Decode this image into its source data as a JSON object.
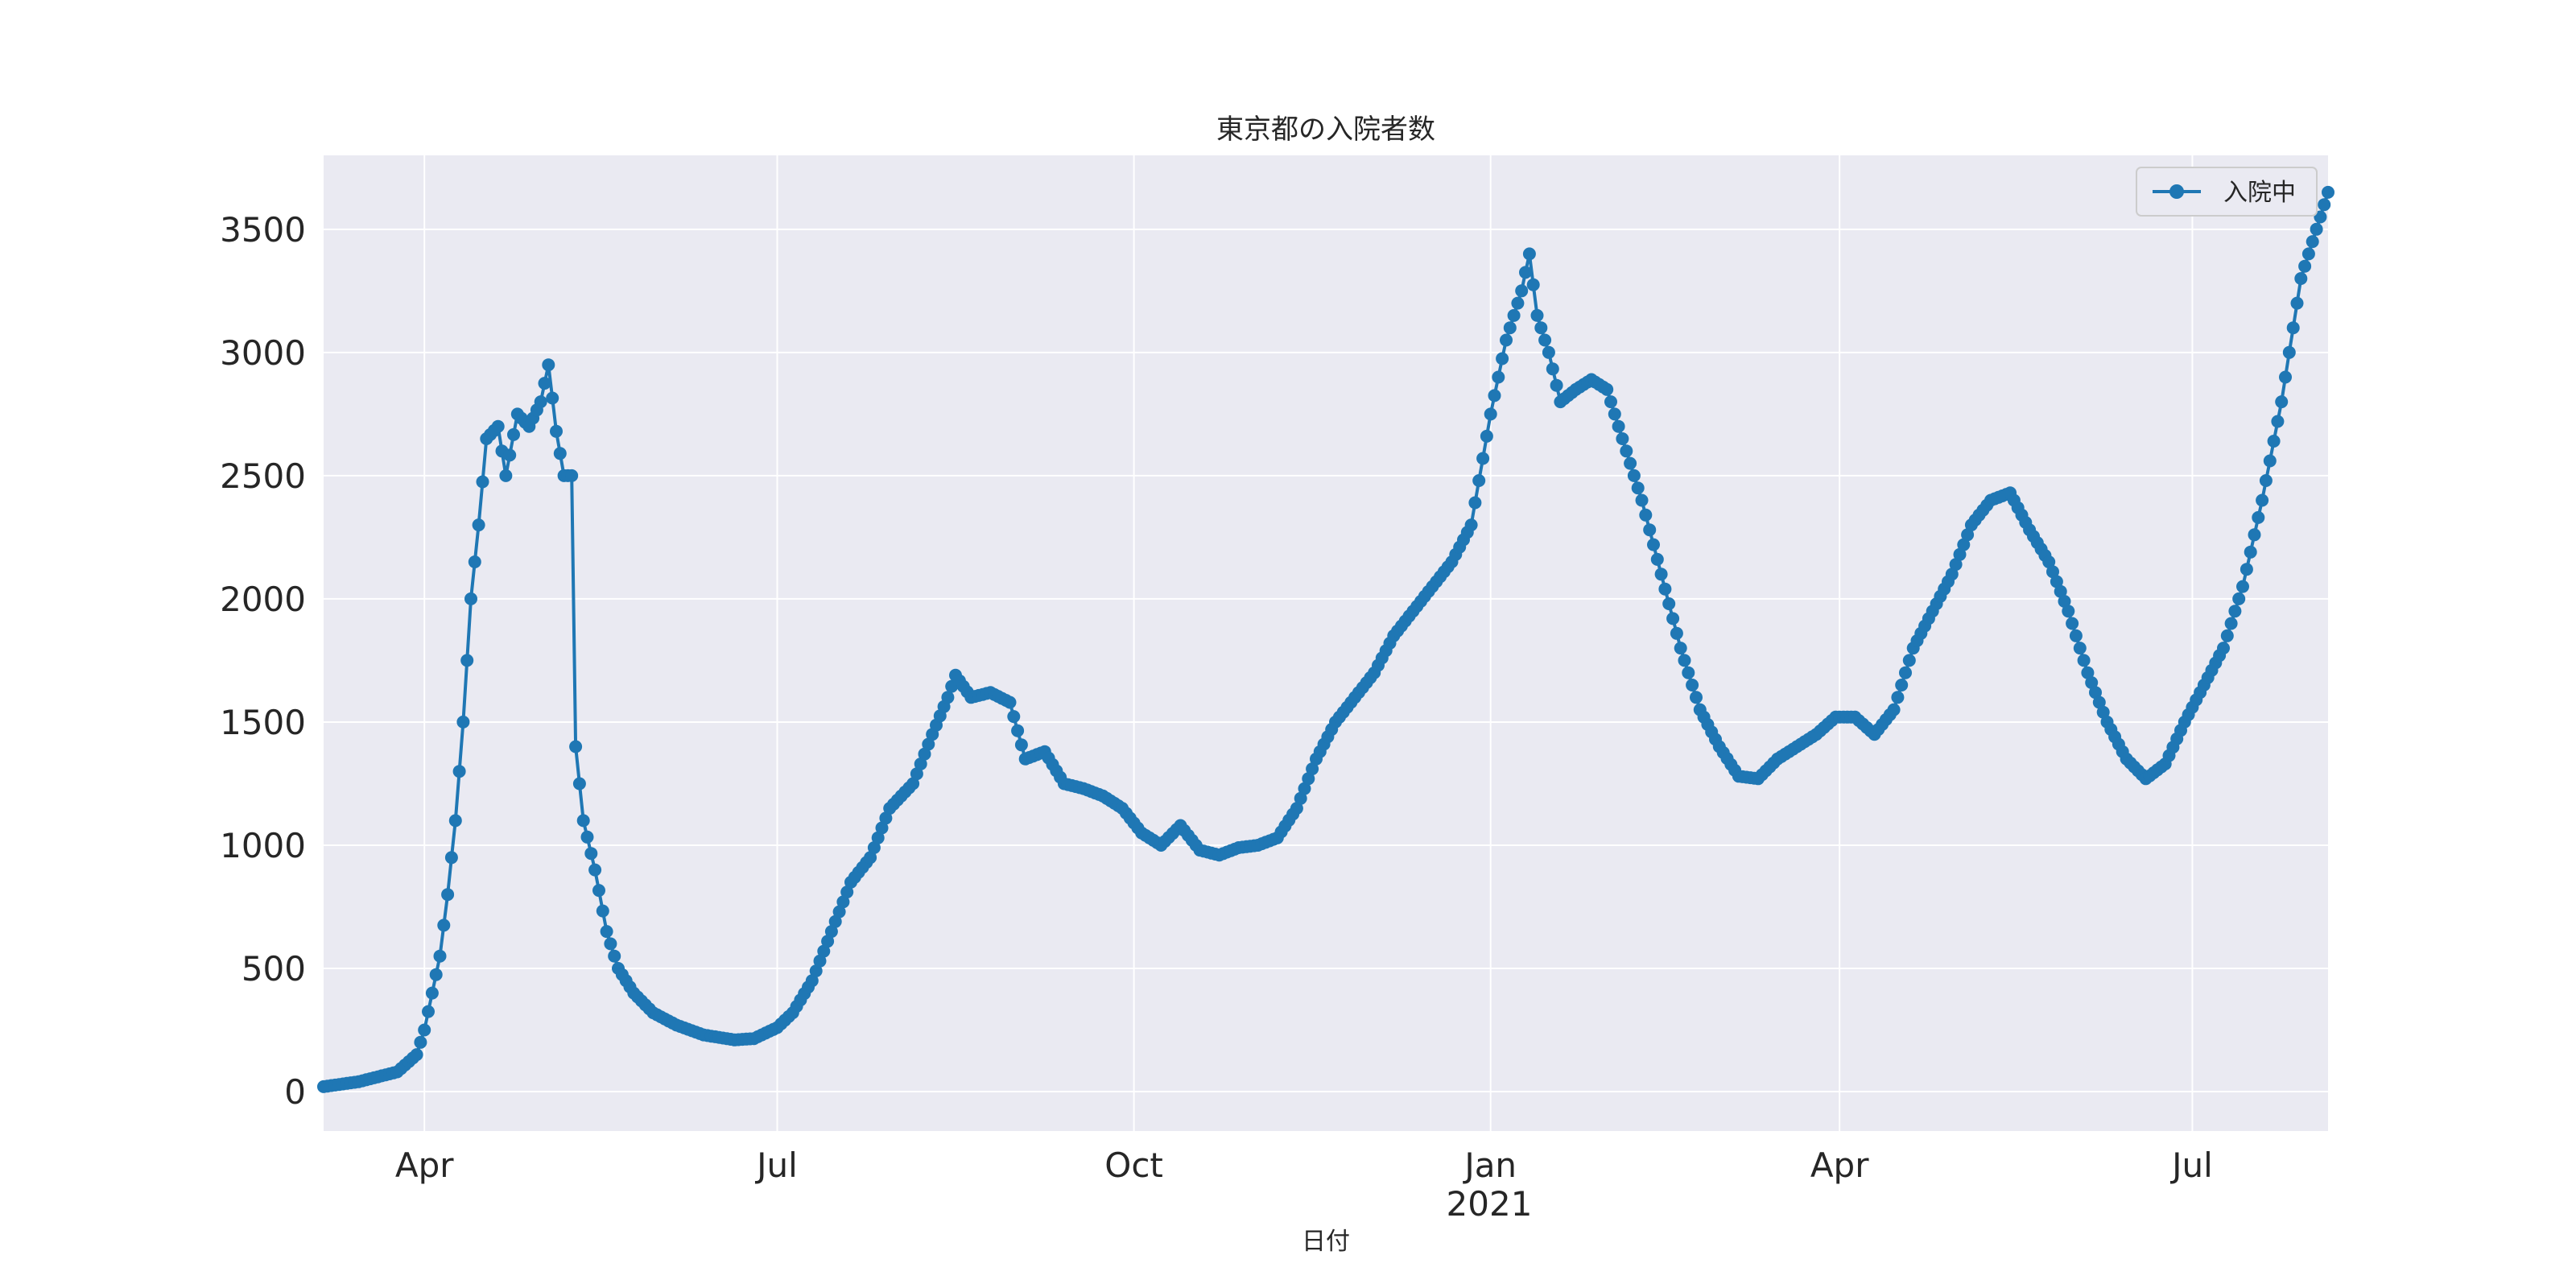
{
  "chart_data": {
    "type": "line",
    "title": "東京都の入院者数",
    "xlabel": "日付",
    "ylabel": "",
    "x_range": [
      "2020-03-06",
      "2021-08-05"
    ],
    "ylim": [
      -160,
      3800
    ],
    "y_ticks": [
      0,
      500,
      1000,
      1500,
      2000,
      2500,
      3000,
      3500
    ],
    "x_ticks": [
      {
        "date": "2020-04-01",
        "label": "Apr"
      },
      {
        "date": "2020-07-01",
        "label": "Jul"
      },
      {
        "date": "2020-10-01",
        "label": "Oct"
      },
      {
        "date": "2021-01-01",
        "label": "Jan"
      },
      {
        "date": "2021-04-01",
        "label": "Apr"
      },
      {
        "date": "2021-07-01",
        "label": "Jul"
      }
    ],
    "x_secondary_label": "2021",
    "grid": true,
    "legend_position": "top-right",
    "series": [
      {
        "name": "入院中",
        "color": "#1f77b4",
        "marker": "circle",
        "points": [
          [
            "2020-03-06",
            20
          ],
          [
            "2020-03-15",
            40
          ],
          [
            "2020-03-25",
            80
          ],
          [
            "2020-03-30",
            150
          ],
          [
            "2020-04-01",
            250
          ],
          [
            "2020-04-03",
            400
          ],
          [
            "2020-04-05",
            550
          ],
          [
            "2020-04-07",
            800
          ],
          [
            "2020-04-09",
            1100
          ],
          [
            "2020-04-11",
            1500
          ],
          [
            "2020-04-13",
            2000
          ],
          [
            "2020-04-15",
            2300
          ],
          [
            "2020-04-17",
            2650
          ],
          [
            "2020-04-20",
            2700
          ],
          [
            "2020-04-22",
            2500
          ],
          [
            "2020-04-25",
            2750
          ],
          [
            "2020-04-28",
            2700
          ],
          [
            "2020-05-01",
            2800
          ],
          [
            "2020-05-03",
            2950
          ],
          [
            "2020-05-05",
            2680
          ],
          [
            "2020-05-07",
            2500
          ],
          [
            "2020-05-09",
            2500
          ],
          [
            "2020-05-10",
            1400
          ],
          [
            "2020-05-12",
            1100
          ],
          [
            "2020-05-15",
            900
          ],
          [
            "2020-05-18",
            650
          ],
          [
            "2020-05-21",
            500
          ],
          [
            "2020-05-25",
            400
          ],
          [
            "2020-05-30",
            320
          ],
          [
            "2020-06-05",
            270
          ],
          [
            "2020-06-12",
            230
          ],
          [
            "2020-06-20",
            210
          ],
          [
            "2020-06-25",
            215
          ],
          [
            "2020-07-01",
            260
          ],
          [
            "2020-07-05",
            320
          ],
          [
            "2020-07-10",
            450
          ],
          [
            "2020-07-15",
            650
          ],
          [
            "2020-07-20",
            850
          ],
          [
            "2020-07-25",
            950
          ],
          [
            "2020-07-30",
            1150
          ],
          [
            "2020-08-05",
            1250
          ],
          [
            "2020-08-10",
            1450
          ],
          [
            "2020-08-14",
            1600
          ],
          [
            "2020-08-16",
            1690
          ],
          [
            "2020-08-20",
            1600
          ],
          [
            "2020-08-25",
            1620
          ],
          [
            "2020-08-30",
            1580
          ],
          [
            "2020-09-03",
            1350
          ],
          [
            "2020-09-08",
            1380
          ],
          [
            "2020-09-13",
            1250
          ],
          [
            "2020-09-18",
            1230
          ],
          [
            "2020-09-23",
            1200
          ],
          [
            "2020-09-28",
            1150
          ],
          [
            "2020-10-03",
            1050
          ],
          [
            "2020-10-08",
            1000
          ],
          [
            "2020-10-13",
            1080
          ],
          [
            "2020-10-18",
            980
          ],
          [
            "2020-10-23",
            960
          ],
          [
            "2020-10-28",
            990
          ],
          [
            "2020-11-02",
            1000
          ],
          [
            "2020-11-07",
            1030
          ],
          [
            "2020-11-12",
            1150
          ],
          [
            "2020-11-17",
            1350
          ],
          [
            "2020-11-22",
            1500
          ],
          [
            "2020-11-27",
            1600
          ],
          [
            "2020-12-02",
            1700
          ],
          [
            "2020-12-07",
            1850
          ],
          [
            "2020-12-12",
            1950
          ],
          [
            "2020-12-17",
            2050
          ],
          [
            "2020-12-22",
            2150
          ],
          [
            "2020-12-27",
            2300
          ],
          [
            "2021-01-01",
            2750
          ],
          [
            "2021-01-05",
            3050
          ],
          [
            "2021-01-09",
            3250
          ],
          [
            "2021-01-11",
            3400
          ],
          [
            "2021-01-13",
            3150
          ],
          [
            "2021-01-16",
            3000
          ],
          [
            "2021-01-19",
            2800
          ],
          [
            "2021-01-23",
            2850
          ],
          [
            "2021-01-27",
            2890
          ],
          [
            "2021-01-31",
            2850
          ],
          [
            "2021-02-04",
            2650
          ],
          [
            "2021-02-09",
            2400
          ],
          [
            "2021-02-14",
            2100
          ],
          [
            "2021-02-19",
            1800
          ],
          [
            "2021-02-24",
            1550
          ],
          [
            "2021-03-01",
            1400
          ],
          [
            "2021-03-06",
            1280
          ],
          [
            "2021-03-11",
            1270
          ],
          [
            "2021-03-16",
            1350
          ],
          [
            "2021-03-21",
            1400
          ],
          [
            "2021-03-26",
            1450
          ],
          [
            "2021-03-31",
            1520
          ],
          [
            "2021-04-05",
            1520
          ],
          [
            "2021-04-10",
            1450
          ],
          [
            "2021-04-15",
            1550
          ],
          [
            "2021-04-20",
            1800
          ],
          [
            "2021-04-25",
            1950
          ],
          [
            "2021-04-30",
            2100
          ],
          [
            "2021-05-05",
            2300
          ],
          [
            "2021-05-10",
            2400
          ],
          [
            "2021-05-15",
            2430
          ],
          [
            "2021-05-20",
            2280
          ],
          [
            "2021-05-25",
            2150
          ],
          [
            "2021-05-30",
            1950
          ],
          [
            "2021-06-04",
            1700
          ],
          [
            "2021-06-09",
            1500
          ],
          [
            "2021-06-14",
            1350
          ],
          [
            "2021-06-19",
            1270
          ],
          [
            "2021-06-24",
            1330
          ],
          [
            "2021-06-29",
            1500
          ],
          [
            "2021-07-04",
            1650
          ],
          [
            "2021-07-09",
            1800
          ],
          [
            "2021-07-14",
            2050
          ],
          [
            "2021-07-19",
            2400
          ],
          [
            "2021-07-24",
            2800
          ],
          [
            "2021-07-29",
            3300
          ],
          [
            "2021-08-02",
            3500
          ],
          [
            "2021-08-05",
            3650
          ]
        ]
      }
    ]
  }
}
